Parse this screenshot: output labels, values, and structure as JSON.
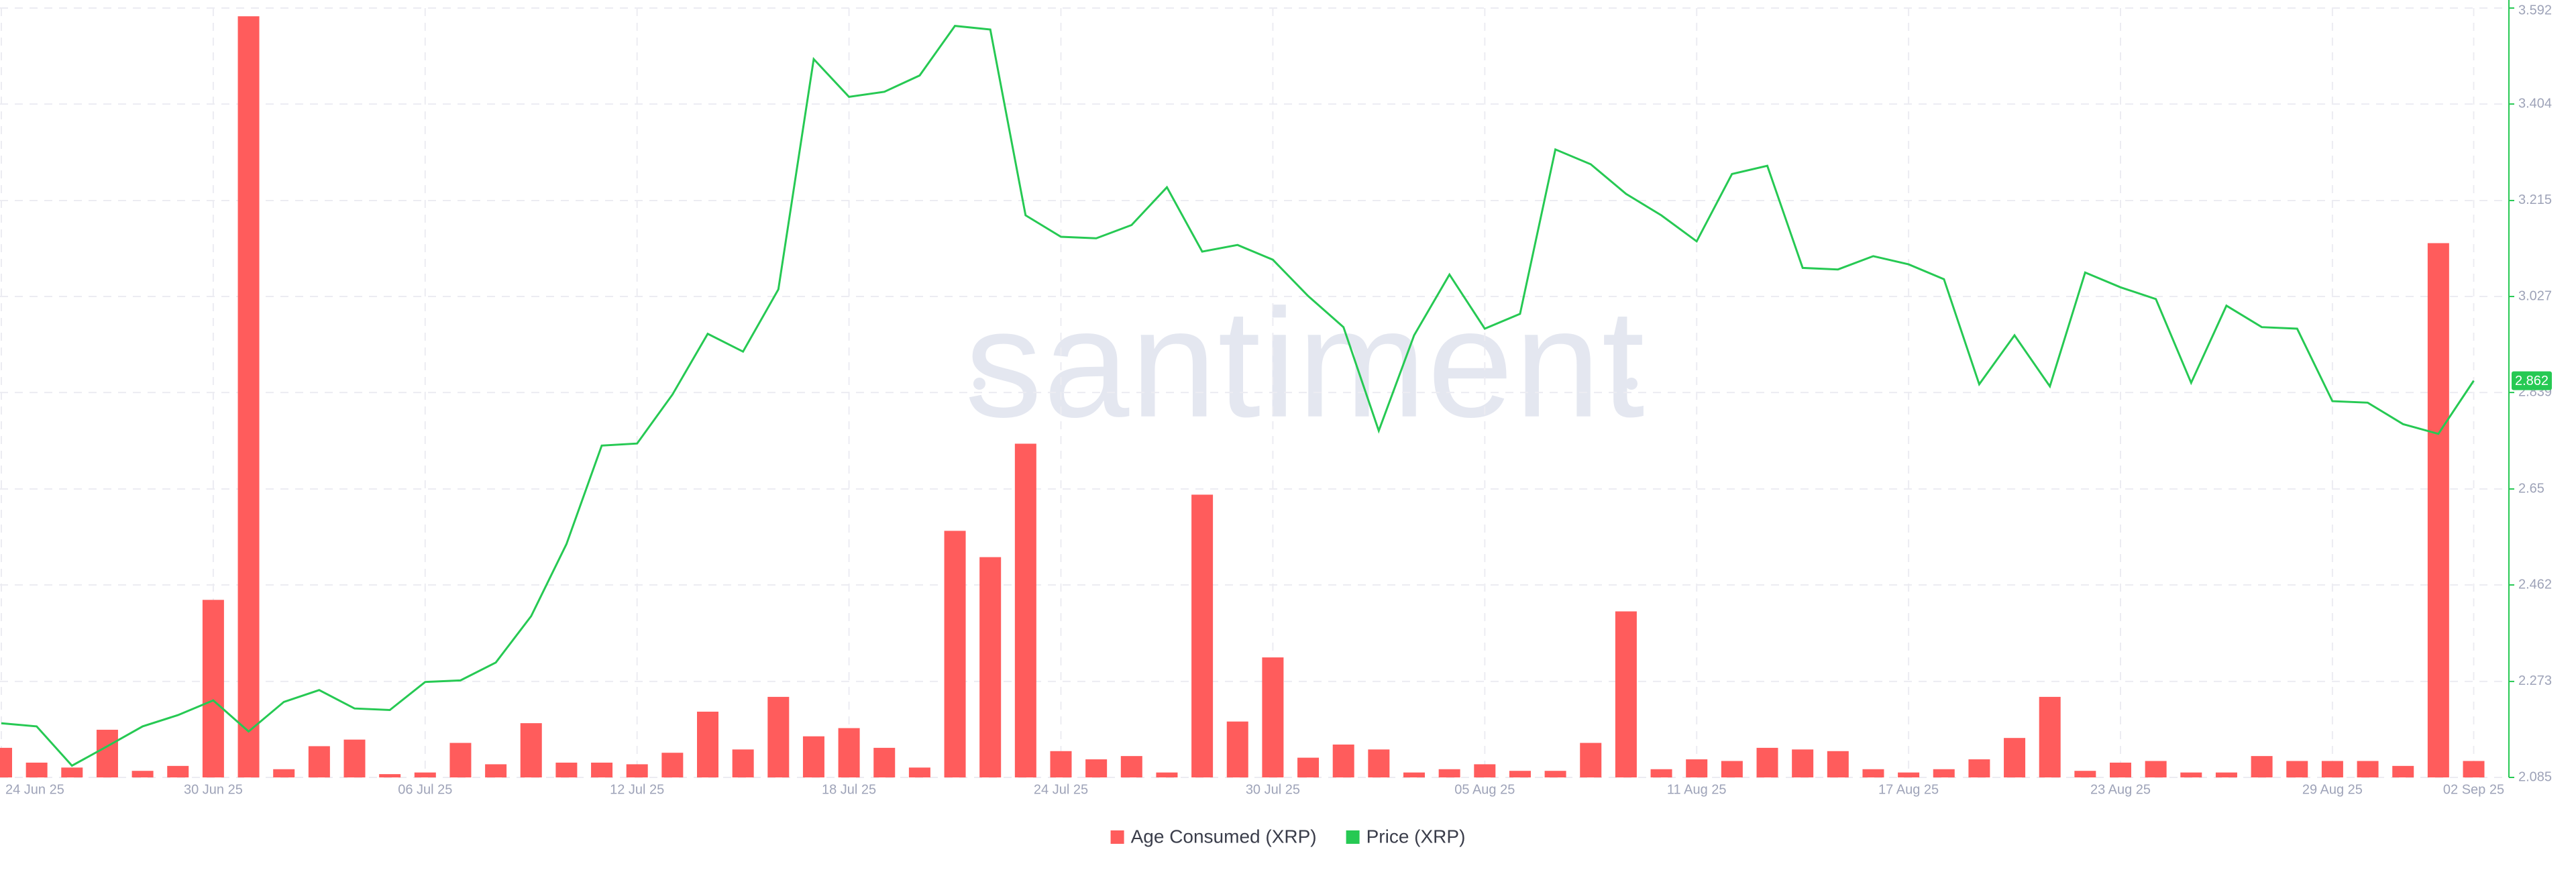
{
  "chart_data": {
    "type": "combo",
    "watermark": "santiment",
    "categories": [
      "24 Jun 25",
      null,
      null,
      null,
      null,
      null,
      "30 Jun 25",
      null,
      null,
      null,
      null,
      null,
      "06 Jul 25",
      null,
      null,
      null,
      null,
      null,
      "12 Jul 25",
      null,
      null,
      null,
      null,
      null,
      "18 Jul 25",
      null,
      null,
      null,
      null,
      null,
      "24 Jul 25",
      null,
      null,
      null,
      null,
      null,
      "30 Jul 25",
      null,
      null,
      null,
      null,
      null,
      "05 Aug 25",
      null,
      null,
      null,
      null,
      null,
      "11 Aug 25",
      null,
      null,
      null,
      null,
      null,
      "17 Aug 25",
      null,
      null,
      null,
      null,
      null,
      "23 Aug 25",
      null,
      null,
      null,
      null,
      null,
      "29 Aug 25",
      null,
      null,
      null,
      "02 Sep 25"
    ],
    "ylim": [
      2.085,
      3.592
    ],
    "yticks": [
      2.085,
      2.273,
      2.462,
      2.65,
      2.839,
      3.027,
      3.215,
      3.404,
      3.592
    ],
    "y2lim": [
      0,
      468
    ],
    "grid": true,
    "legend": "bottom",
    "series": [
      {
        "name": "Age Consumed (XRP)",
        "type": "bar",
        "axis": "y2",
        "color": "#ff5c5c",
        "values": [
          18,
          9,
          6,
          29,
          4,
          7,
          108,
          463,
          5,
          19,
          23,
          2,
          3,
          21,
          8,
          33,
          9,
          9,
          8,
          15,
          40,
          17,
          49,
          25,
          30,
          18,
          6,
          150,
          134,
          203,
          16,
          11,
          13,
          3,
          172,
          34,
          73,
          12,
          20,
          17,
          3,
          5,
          8,
          4,
          4,
          21,
          101,
          5,
          11,
          10,
          18,
          17,
          16,
          5,
          3,
          5,
          11,
          24,
          49,
          4,
          9,
          10,
          3,
          3,
          13,
          10,
          10,
          10,
          7,
          325,
          10
        ]
      },
      {
        "name": "Price (XRP)",
        "type": "line",
        "color": "#26c953",
        "values": [
          2.191,
          2.185,
          2.108,
          2.146,
          2.185,
          2.207,
          2.236,
          2.175,
          2.233,
          2.256,
          2.22,
          2.217,
          2.272,
          2.275,
          2.31,
          2.401,
          2.542,
          2.735,
          2.739,
          2.835,
          2.954,
          2.919,
          3.041,
          3.492,
          3.418,
          3.428,
          3.46,
          3.557,
          3.55,
          3.186,
          3.144,
          3.141,
          3.167,
          3.241,
          3.115,
          3.128,
          3.099,
          3.028,
          2.967,
          2.764,
          2.951,
          3.07,
          2.964,
          2.993,
          3.315,
          3.286,
          3.228,
          3.186,
          3.135,
          3.267,
          3.283,
          3.083,
          3.08,
          3.106,
          3.09,
          3.061,
          2.855,
          2.951,
          2.851,
          3.074,
          3.045,
          3.022,
          2.858,
          3.009,
          2.967,
          2.964,
          2.822,
          2.819,
          2.777,
          2.758,
          2.862
        ]
      }
    ]
  }
}
